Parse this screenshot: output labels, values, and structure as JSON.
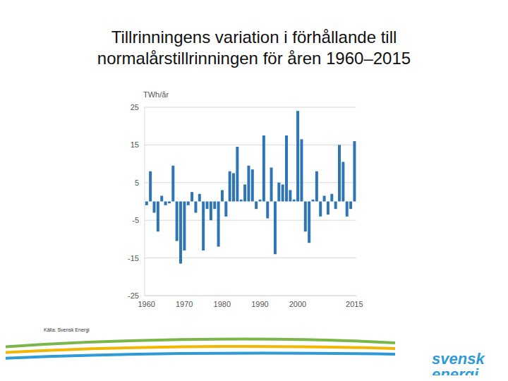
{
  "chart_data": {
    "type": "bar",
    "title": "Tillrinningens variation i förhållande till normalårstillrinningen för åren 1960–2015",
    "y_label": "TWh/år",
    "annotations": [
      "Källa: Svensk Energi",
      "svensk energi"
    ],
    "categories": [
      "1960",
      null,
      null,
      null,
      null,
      null,
      null,
      null,
      null,
      null,
      "1970",
      null,
      null,
      null,
      null,
      null,
      null,
      null,
      null,
      null,
      "1980",
      null,
      null,
      null,
      null,
      null,
      null,
      null,
      null,
      null,
      "1990",
      null,
      null,
      null,
      null,
      null,
      null,
      null,
      null,
      null,
      "2000",
      null,
      null,
      null,
      null,
      null,
      null,
      null,
      null,
      null,
      null,
      null,
      null,
      null,
      null,
      "2015"
    ],
    "values": [
      -1,
      8,
      -3,
      -8,
      1.5,
      -1,
      -0.5,
      9.5,
      -10.5,
      -16.5,
      -13,
      -1,
      2.5,
      -3,
      2,
      -13,
      -2,
      -5,
      -2,
      -12,
      3,
      -4,
      8,
      7.5,
      14.5,
      0.5,
      4.5,
      9.5,
      8.5,
      -2,
      0.5,
      17.5,
      -4.5,
      9,
      -14,
      5,
      4.5,
      17.5,
      3,
      0.5,
      24,
      16.5,
      -8,
      -11,
      0.5,
      8,
      -4,
      1.5,
      -3.5,
      2,
      -2,
      15,
      10.5,
      -4,
      -2,
      16
    ],
    "color": "#2e75b6",
    "ylim": [
      -25,
      25
    ],
    "yticks": [
      -25,
      -15,
      -5,
      5,
      15,
      25
    ],
    "grid": true
  }
}
